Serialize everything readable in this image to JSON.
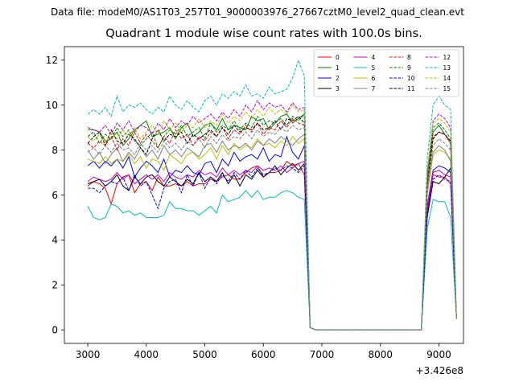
{
  "chart_data": {
    "type": "line",
    "suptitle": "Data file: modeM0/AS1T03_257T01_9000003976_27667cztM0_level2_quad_clean.evt",
    "title": "Quadrant 1 module wise count rates with 100.0s bins.",
    "xlabel": "",
    "ylabel": "",
    "x_offset_label": "+3.426e8",
    "x_start": 3000,
    "x_step": 100,
    "xlim": [
      2600,
      9420
    ],
    "ylim": [
      -0.6,
      12.6
    ],
    "xticks": [
      3000,
      4000,
      5000,
      6000,
      7000,
      8000,
      9000
    ],
    "yticks": [
      0,
      2,
      4,
      6,
      8,
      10,
      12
    ],
    "grid": false,
    "legend": {
      "placement": "top-right",
      "columns": 4
    },
    "series": [
      {
        "name": "0",
        "color": "#ff0000",
        "dash": "solid",
        "values": [
          6.4,
          6.6,
          6.5,
          6.3,
          5.6,
          6.5,
          6.8,
          6.9,
          6.1,
          6.5,
          6.6,
          6.2,
          6.8,
          6.4,
          6.4,
          6.5,
          6.4,
          6.6,
          6.4,
          6.5,
          6.5,
          6.7,
          6.6,
          6.8,
          6.9,
          6.7,
          6.7,
          7.0,
          7.2,
          7.3,
          6.8,
          7.0,
          7.0,
          7.1,
          7.5,
          7.3,
          7.4,
          6.9,
          0.1,
          0,
          0,
          0,
          0,
          0,
          0,
          0,
          0,
          0,
          0,
          0,
          0,
          0,
          0,
          0,
          0,
          0,
          0,
          0,
          5.2,
          6.9,
          6.8,
          6.8,
          6.5,
          0.5
        ]
      },
      {
        "name": "1",
        "color": "#008000",
        "dash": "solid",
        "values": [
          8.9,
          8.9,
          8.8,
          8.4,
          8.5,
          8.8,
          8.2,
          8.5,
          8.9,
          9.1,
          9.3,
          8.6,
          8.7,
          8.8,
          9.0,
          8.5,
          9.0,
          9.2,
          8.6,
          8.8,
          9.1,
          9.2,
          8.9,
          9.4,
          8.9,
          9.1,
          9.0,
          8.9,
          9.5,
          9.3,
          9.4,
          8.9,
          9.2,
          9.5,
          9.6,
          9.2,
          9.4,
          9.6,
          0.1,
          0,
          0,
          0,
          0,
          0,
          0,
          0,
          0,
          0,
          0,
          0,
          0,
          0,
          0,
          0,
          0,
          0,
          0,
          0,
          6.8,
          8.8,
          9.1,
          8.7,
          8.3,
          0.5
        ]
      },
      {
        "name": "2",
        "color": "#0000ff",
        "dash": "solid",
        "values": [
          7.3,
          7.5,
          7.2,
          7.5,
          7.3,
          7.6,
          7.2,
          7.7,
          6.8,
          7.2,
          7.5,
          7.3,
          7.0,
          7.6,
          6.8,
          7.1,
          7.0,
          7.3,
          7.0,
          6.9,
          7.4,
          7.5,
          7.0,
          7.6,
          7.3,
          7.9,
          7.5,
          7.7,
          7.8,
          7.6,
          8.1,
          7.5,
          7.8,
          7.7,
          8.6,
          7.9,
          7.6,
          8.2,
          0.1,
          0,
          0,
          0,
          0,
          0,
          0,
          0,
          0,
          0,
          0,
          0,
          0,
          0,
          0,
          0,
          0,
          0,
          0,
          0,
          5.5,
          7.1,
          7.3,
          7.2,
          7.0,
          0.5
        ]
      },
      {
        "name": "3",
        "color": "#000000",
        "dash": "solid",
        "values": [
          6.5,
          6.6,
          6.7,
          6.4,
          6.6,
          6.9,
          6.4,
          6.2,
          6.8,
          6.5,
          6.8,
          6.9,
          6.6,
          6.4,
          6.8,
          6.6,
          6.4,
          6.7,
          6.5,
          7.0,
          6.6,
          6.8,
          6.6,
          7.0,
          6.5,
          6.9,
          6.4,
          6.9,
          6.7,
          7.1,
          6.8,
          7.0,
          7.3,
          6.9,
          7.2,
          7.4,
          7.1,
          7.4,
          0.1,
          0,
          0,
          0,
          0,
          0,
          0,
          0,
          0,
          0,
          0,
          0,
          0,
          0,
          0,
          0,
          0,
          0,
          0,
          0,
          5.0,
          6.6,
          6.5,
          6.8,
          7.2,
          0.5
        ]
      },
      {
        "name": "4",
        "color": "#cc00cc",
        "dash": "solid",
        "values": [
          6.6,
          6.8,
          6.7,
          6.6,
          6.7,
          7.0,
          6.7,
          6.9,
          6.5,
          6.7,
          6.9,
          6.7,
          6.9,
          6.6,
          7.0,
          6.8,
          6.7,
          6.9,
          6.8,
          7.1,
          6.9,
          7.0,
          6.8,
          7.2,
          6.9,
          7.1,
          6.9,
          7.1,
          7.0,
          7.3,
          7.1,
          7.2,
          7.1,
          7.3,
          7.0,
          7.2,
          7.4,
          7.5,
          0.1,
          0,
          0,
          0,
          0,
          0,
          0,
          0,
          0,
          0,
          0,
          0,
          0,
          0,
          0,
          0,
          0,
          0,
          0,
          0,
          5.4,
          7.0,
          7.1,
          6.9,
          6.8,
          0.5
        ]
      },
      {
        "name": "5",
        "color": "#00bfbf",
        "dash": "solid",
        "values": [
          5.5,
          5.0,
          4.9,
          5.0,
          5.6,
          5.5,
          5.2,
          5.3,
          5.1,
          5.2,
          5.0,
          5.0,
          5.0,
          5.1,
          5.7,
          5.4,
          5.4,
          5.3,
          5.3,
          5.1,
          5.3,
          5.5,
          5.2,
          6.0,
          5.7,
          5.8,
          5.9,
          6.2,
          5.9,
          6.2,
          5.8,
          5.9,
          5.9,
          6.1,
          6.2,
          6.1,
          5.9,
          5.8,
          0.1,
          0,
          0,
          0,
          0,
          0,
          0,
          0,
          0,
          0,
          0,
          0,
          0,
          0,
          0,
          0,
          0,
          0,
          0,
          0,
          4.5,
          5.8,
          5.7,
          5.7,
          5.0,
          0.5
        ]
      },
      {
        "name": "6",
        "color": "#bfbf00",
        "dash": "solid",
        "values": [
          7.6,
          7.5,
          7.4,
          7.7,
          7.4,
          7.6,
          7.5,
          7.8,
          7.4,
          7.7,
          7.2,
          7.6,
          7.5,
          7.1,
          7.8,
          7.6,
          7.4,
          7.8,
          7.9,
          7.6,
          7.8,
          8.1,
          7.6,
          8.2,
          7.8,
          8.3,
          8.0,
          8.2,
          8.1,
          8.5,
          8.2,
          8.3,
          8.1,
          8.4,
          8.2,
          8.6,
          8.3,
          8.5,
          0.1,
          0,
          0,
          0,
          0,
          0,
          0,
          0,
          0,
          0,
          0,
          0,
          0,
          0,
          0,
          0,
          0,
          0,
          0,
          0,
          6.0,
          7.8,
          8.0,
          7.9,
          7.6,
          0.5
        ]
      },
      {
        "name": "7",
        "color": "#808080",
        "dash": "solid",
        "values": [
          8.0,
          7.6,
          7.9,
          7.4,
          7.8,
          8.1,
          7.5,
          7.9,
          7.6,
          8.1,
          7.7,
          8.0,
          7.6,
          8.2,
          7.8,
          8.0,
          7.7,
          8.1,
          7.9,
          7.7,
          8.2,
          8.3,
          7.9,
          8.4,
          8.0,
          8.2,
          8.1,
          8.3,
          8.0,
          8.4,
          8.2,
          8.5,
          8.3,
          8.6,
          8.4,
          8.2,
          8.5,
          8.7,
          0.1,
          0,
          0,
          0,
          0,
          0,
          0,
          0,
          0,
          0,
          0,
          0,
          0,
          0,
          0,
          0,
          0,
          0,
          0,
          0,
          6.2,
          7.9,
          8.2,
          8.0,
          7.5,
          0.5
        ]
      },
      {
        "name": "8",
        "color": "#ff0000",
        "dash": "dashed",
        "values": [
          8.3,
          8.1,
          8.4,
          8.2,
          8.6,
          8.0,
          8.5,
          8.2,
          8.8,
          8.3,
          8.7,
          8.4,
          8.1,
          8.6,
          8.3,
          8.9,
          8.5,
          8.7,
          8.2,
          8.6,
          8.4,
          8.8,
          8.6,
          9.0,
          8.5,
          8.9,
          8.7,
          9.1,
          8.8,
          9.2,
          8.7,
          9.0,
          8.9,
          9.3,
          9.0,
          9.4,
          9.2,
          9.1,
          0.1,
          0,
          0,
          0,
          0,
          0,
          0,
          0,
          0,
          0,
          0,
          0,
          0,
          0,
          0,
          0,
          0,
          0,
          0,
          0,
          6.5,
          8.6,
          8.8,
          8.7,
          8.3,
          0.5
        ]
      },
      {
        "name": "9",
        "color": "#008000",
        "dash": "dashed",
        "values": [
          8.6,
          8.8,
          8.3,
          8.7,
          8.5,
          9.0,
          8.6,
          8.9,
          8.4,
          8.2,
          8.5,
          8.8,
          8.1,
          8.6,
          8.9,
          8.7,
          9.1,
          8.6,
          8.8,
          9.0,
          8.5,
          9.2,
          8.8,
          9.1,
          8.9,
          9.3,
          8.9,
          9.2,
          9.0,
          9.5,
          9.1,
          9.3,
          9.2,
          9.4,
          9.1,
          9.5,
          9.3,
          9.6,
          0.1,
          0,
          0,
          0,
          0,
          0,
          0,
          0,
          0,
          0,
          0,
          0,
          0,
          0,
          0,
          0,
          0,
          0,
          0,
          0,
          6.8,
          9.0,
          9.2,
          8.9,
          8.5,
          0.5
        ]
      },
      {
        "name": "10",
        "color": "#0000ff",
        "dash": "dashed",
        "values": [
          6.3,
          6.3,
          6.1,
          6.4,
          6.6,
          6.5,
          6.8,
          6.2,
          6.9,
          6.4,
          6.6,
          6.0,
          5.4,
          6.3,
          6.6,
          6.7,
          6.1,
          6.9,
          6.4,
          7.0,
          6.3,
          6.8,
          6.5,
          6.9,
          6.6,
          7.0,
          6.7,
          7.1,
          6.8,
          7.2,
          6.9,
          7.0,
          7.2,
          7.1,
          7.3,
          7.2,
          7.0,
          7.3,
          0.1,
          0,
          0,
          0,
          0,
          0,
          0,
          0,
          0,
          0,
          0,
          0,
          0,
          0,
          0,
          0,
          0,
          0,
          0,
          0,
          5.2,
          6.7,
          6.9,
          6.7,
          6.6,
          0.5
        ]
      },
      {
        "name": "11",
        "color": "#000000",
        "dash": "dashed",
        "values": [
          8.3,
          8.6,
          8.8,
          8.2,
          8.9,
          8.4,
          8.3,
          8.7,
          8.5,
          8.1,
          7.8,
          8.5,
          8.9,
          8.4,
          8.7,
          8.6,
          8.8,
          8.3,
          8.7,
          8.5,
          8.7,
          8.9,
          8.6,
          9.0,
          8.7,
          9.1,
          8.8,
          9.0,
          8.9,
          9.2,
          8.9,
          9.0,
          9.3,
          8.9,
          9.4,
          9.3,
          9.5,
          9.2,
          0.1,
          0,
          0,
          0,
          0,
          0,
          0,
          0,
          0,
          0,
          0,
          0,
          0,
          0,
          0,
          0,
          0,
          0,
          0,
          0,
          6.4,
          8.5,
          8.8,
          8.7,
          8.4,
          0.5
        ]
      },
      {
        "name": "12",
        "color": "#cc00cc",
        "dash": "dashed",
        "values": [
          9.0,
          8.9,
          8.8,
          9.1,
          8.7,
          9.2,
          8.9,
          9.3,
          8.8,
          9.1,
          9.0,
          8.7,
          9.2,
          8.9,
          9.4,
          9.0,
          9.3,
          9.1,
          9.5,
          9.2,
          9.4,
          9.6,
          9.3,
          9.7,
          9.4,
          9.8,
          9.5,
          10.0,
          9.7,
          10.2,
          9.8,
          10.1,
          9.9,
          10.0,
          9.7,
          10.1,
          9.8,
          9.9,
          0.1,
          0,
          0,
          0,
          0,
          0,
          0,
          0,
          0,
          0,
          0,
          0,
          0,
          0,
          0,
          0,
          0,
          0,
          0,
          0,
          7.0,
          9.3,
          9.6,
          9.4,
          9.0,
          0.5
        ]
      },
      {
        "name": "13",
        "color": "#00bfbf",
        "dash": "dashed",
        "values": [
          9.6,
          9.8,
          9.6,
          9.9,
          9.5,
          10.4,
          9.7,
          10.0,
          9.9,
          10.1,
          9.8,
          9.6,
          9.9,
          9.7,
          10.4,
          10.0,
          9.8,
          10.2,
          9.9,
          9.7,
          10.2,
          10.4,
          10.0,
          10.5,
          10.3,
          10.6,
          10.4,
          10.9,
          10.4,
          10.5,
          10.3,
          10.8,
          10.5,
          10.6,
          10.7,
          11.2,
          12.0,
          11.3,
          0.1,
          0,
          0,
          0,
          0,
          0,
          0,
          0,
          0,
          0,
          0,
          0,
          0,
          0,
          0,
          0,
          0,
          0,
          0,
          0,
          7.6,
          10.0,
          10.4,
          10.0,
          9.8,
          0.5
        ]
      },
      {
        "name": "14",
        "color": "#bfbf00",
        "dash": "dashed",
        "values": [
          8.6,
          8.4,
          8.7,
          8.3,
          8.8,
          8.5,
          8.9,
          8.6,
          9.0,
          8.5,
          8.8,
          9.1,
          8.7,
          9.3,
          8.9,
          9.2,
          8.8,
          9.1,
          9.0,
          9.4,
          9.0,
          9.3,
          9.1,
          9.6,
          9.2,
          9.5,
          9.3,
          9.7,
          9.4,
          9.8,
          9.5,
          9.9,
          9.6,
          9.8,
          9.6,
          10.0,
          9.7,
          9.8,
          0.1,
          0,
          0,
          0,
          0,
          0,
          0,
          0,
          0,
          0,
          0,
          0,
          0,
          0,
          0,
          0,
          0,
          0,
          0,
          0,
          7.1,
          9.2,
          9.4,
          9.2,
          8.8,
          0.5
        ]
      },
      {
        "name": "15",
        "color": "#808080",
        "dash": "dashed",
        "values": [
          7.9,
          8.1,
          7.8,
          8.2,
          7.9,
          8.3,
          8.0,
          8.1,
          7.8,
          8.3,
          8.0,
          8.2,
          7.9,
          8.4,
          8.1,
          8.3,
          8.0,
          8.4,
          8.2,
          8.5,
          8.1,
          8.6,
          8.3,
          8.7,
          8.4,
          8.6,
          8.5,
          8.8,
          8.5,
          8.9,
          8.6,
          8.8,
          8.7,
          9.0,
          8.8,
          9.1,
          8.9,
          9.0,
          0.1,
          0,
          0,
          0,
          0,
          0,
          0,
          0,
          0,
          0,
          0,
          0,
          0,
          0,
          0,
          0,
          0,
          0,
          0,
          0,
          6.3,
          8.2,
          8.5,
          8.3,
          8.0,
          0.5
        ]
      }
    ]
  }
}
